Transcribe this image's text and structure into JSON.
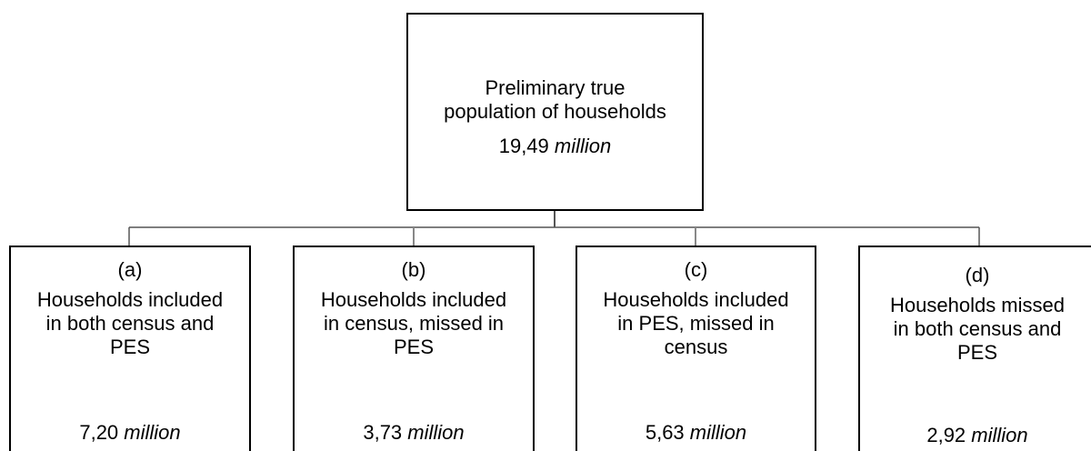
{
  "root": {
    "label_lines": [
      "Preliminary true",
      "population of households"
    ],
    "value": "19,49",
    "unit": "million"
  },
  "nodes": [
    {
      "tag": "(a)",
      "label_lines": [
        "Households included",
        "in both census and",
        "PES"
      ],
      "value": "7,20",
      "unit": "million"
    },
    {
      "tag": "(b)",
      "label_lines": [
        "Households included",
        "in census, missed in",
        "PES"
      ],
      "value": "3,73",
      "unit": "million"
    },
    {
      "tag": "(c)",
      "label_lines": [
        "Households included",
        "in PES, missed in",
        "census"
      ],
      "value": "5,63",
      "unit": "million"
    },
    {
      "tag": "(d)",
      "label_lines": [
        "Households missed",
        "in both census and",
        "PES"
      ],
      "value": "2,92",
      "unit": "million"
    }
  ]
}
